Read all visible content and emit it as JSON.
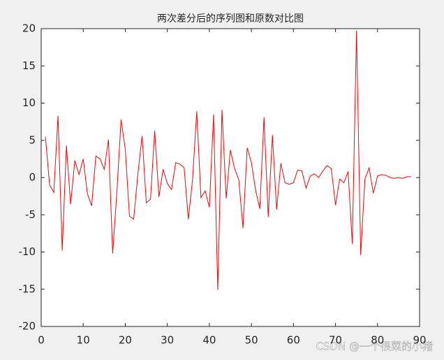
{
  "chart_data": {
    "type": "line",
    "title": "两次差分后的序列图和原数对比图",
    "x": [
      1,
      2,
      3,
      4,
      5,
      6,
      7,
      8,
      9,
      10,
      11,
      12,
      13,
      14,
      15,
      16,
      17,
      18,
      19,
      20,
      21,
      22,
      23,
      24,
      25,
      26,
      27,
      28,
      29,
      30,
      31,
      32,
      33,
      34,
      35,
      36,
      37,
      38,
      39,
      40,
      41,
      42,
      43,
      44,
      45,
      46,
      47,
      48,
      49,
      50,
      51,
      52,
      53,
      54,
      55,
      56,
      57,
      58,
      59,
      60,
      61,
      62,
      63,
      64,
      65,
      66,
      67,
      68,
      69,
      70,
      71,
      72,
      73,
      74,
      75,
      76,
      77,
      78,
      79,
      80,
      81,
      82,
      83,
      84,
      85,
      86,
      87,
      88
    ],
    "series": [
      {
        "color": "#ff0000",
        "values": [
          5.5,
          -1,
          -2,
          8.3,
          -9.8,
          4.3,
          -3.6,
          2.3,
          0.4,
          2.5,
          -2.2,
          -3.8,
          2.9,
          2.5,
          1.1,
          5.1,
          -10.2,
          -2,
          7.8,
          3.8,
          -5.2,
          -5.6,
          0.5,
          5.6,
          -3.4,
          -2.9,
          6.3,
          -2.6,
          1.1,
          -0.8,
          -1.6,
          2,
          1.8,
          1.3,
          -5.6,
          -0.3,
          8.9,
          -2.7,
          -1.8,
          -4,
          8.5,
          -15.1,
          9.1,
          -2.8,
          3.7,
          1.2,
          -0.3,
          -6.8,
          4,
          2,
          -1.7,
          -4.2,
          8.1,
          -5.3,
          5.7,
          -4.3,
          1.9,
          -0.7,
          -0.9,
          -0.7,
          1,
          0.9,
          -1.4,
          0.2,
          0.5,
          0,
          0.9,
          1.6,
          1.2,
          -3.7,
          -0.2,
          -0.7,
          0.8,
          -8.9,
          19.7,
          -10.4,
          -0.2,
          1.3,
          -2.1,
          0.2,
          0.4,
          0.3,
          0,
          -0.1,
          0,
          -0.1,
          0.1,
          0.1
        ]
      }
    ],
    "xlim": [
      0,
      90
    ],
    "xticks": [
      0,
      10,
      20,
      30,
      40,
      50,
      60,
      70,
      80,
      90
    ],
    "ylim": [
      -20,
      20
    ],
    "yticks": [
      -20,
      -15,
      -10,
      -5,
      0,
      5,
      10,
      15,
      20
    ],
    "watermark": "CSDN @一个很菜的小猪"
  }
}
